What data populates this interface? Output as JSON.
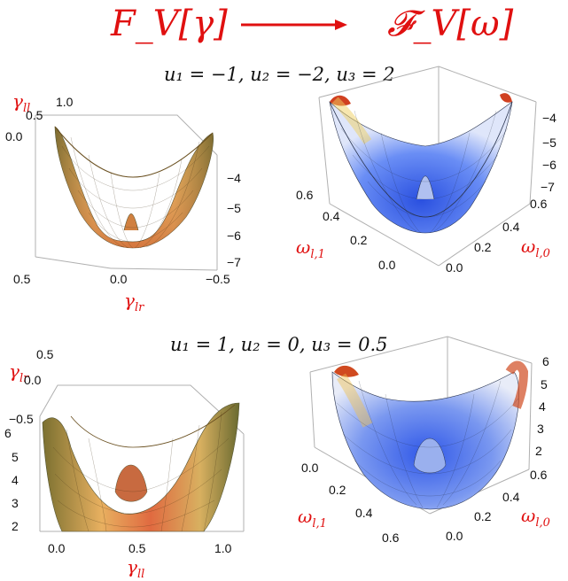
{
  "header": {
    "left_formula": "F_V[γ]",
    "right_formula": "𝓕_V[ω]"
  },
  "rows": [
    {
      "params": "u₁ = −1, u₂ = −2, u₃ = 2",
      "left": {
        "vert_label": "γ",
        "vert_sub": "ll",
        "vert_ticks": [
          "1.0",
          "0.5",
          "0.0"
        ],
        "z_ticks": [
          "−4",
          "−5",
          "−6",
          "−7"
        ],
        "bottom_ticks": [
          "0.5",
          "0.0",
          "−0.5"
        ],
        "bottom_label": "γ",
        "bottom_sub": "lr"
      },
      "right": {
        "z_ticks": [
          "−4",
          "−5",
          "−6",
          "−7"
        ],
        "left_ticks": [
          "0.6",
          "0.4",
          "0.2",
          "0.0"
        ],
        "left_label": "ω",
        "left_sub": "l,1",
        "right_ticks": [
          "0.6",
          "0.4",
          "0.2",
          "0.0"
        ],
        "right_label": "ω",
        "right_sub": "l,0"
      }
    },
    {
      "params": "u₁ = 1, u₂ = 0, u₃ = 0.5",
      "left": {
        "vert_label": "γ",
        "vert_sub": "lr",
        "vert_ticks": [
          "0.5",
          "0.0",
          "−0.5"
        ],
        "z_ticks": [
          "6",
          "5",
          "4",
          "3",
          "2"
        ],
        "bottom_ticks": [
          "0.0",
          "0.5",
          "1.0"
        ],
        "bottom_label": "γ",
        "bottom_sub": "ll"
      },
      "right": {
        "z_ticks": [
          "6",
          "5",
          "4",
          "3",
          "2"
        ],
        "left_ticks": [
          "0.0",
          "0.2",
          "0.4",
          "0.6"
        ],
        "left_label": "ω",
        "left_sub": "l,1",
        "right_ticks": [
          "0.6",
          "0.4",
          "0.2",
          "0.0"
        ],
        "right_label": "ω",
        "right_sub": "l,0"
      }
    }
  ],
  "colors": {
    "accent": "#e01010",
    "surface_orange": "#e89a5a",
    "surface_blue": "#4a7af0"
  }
}
